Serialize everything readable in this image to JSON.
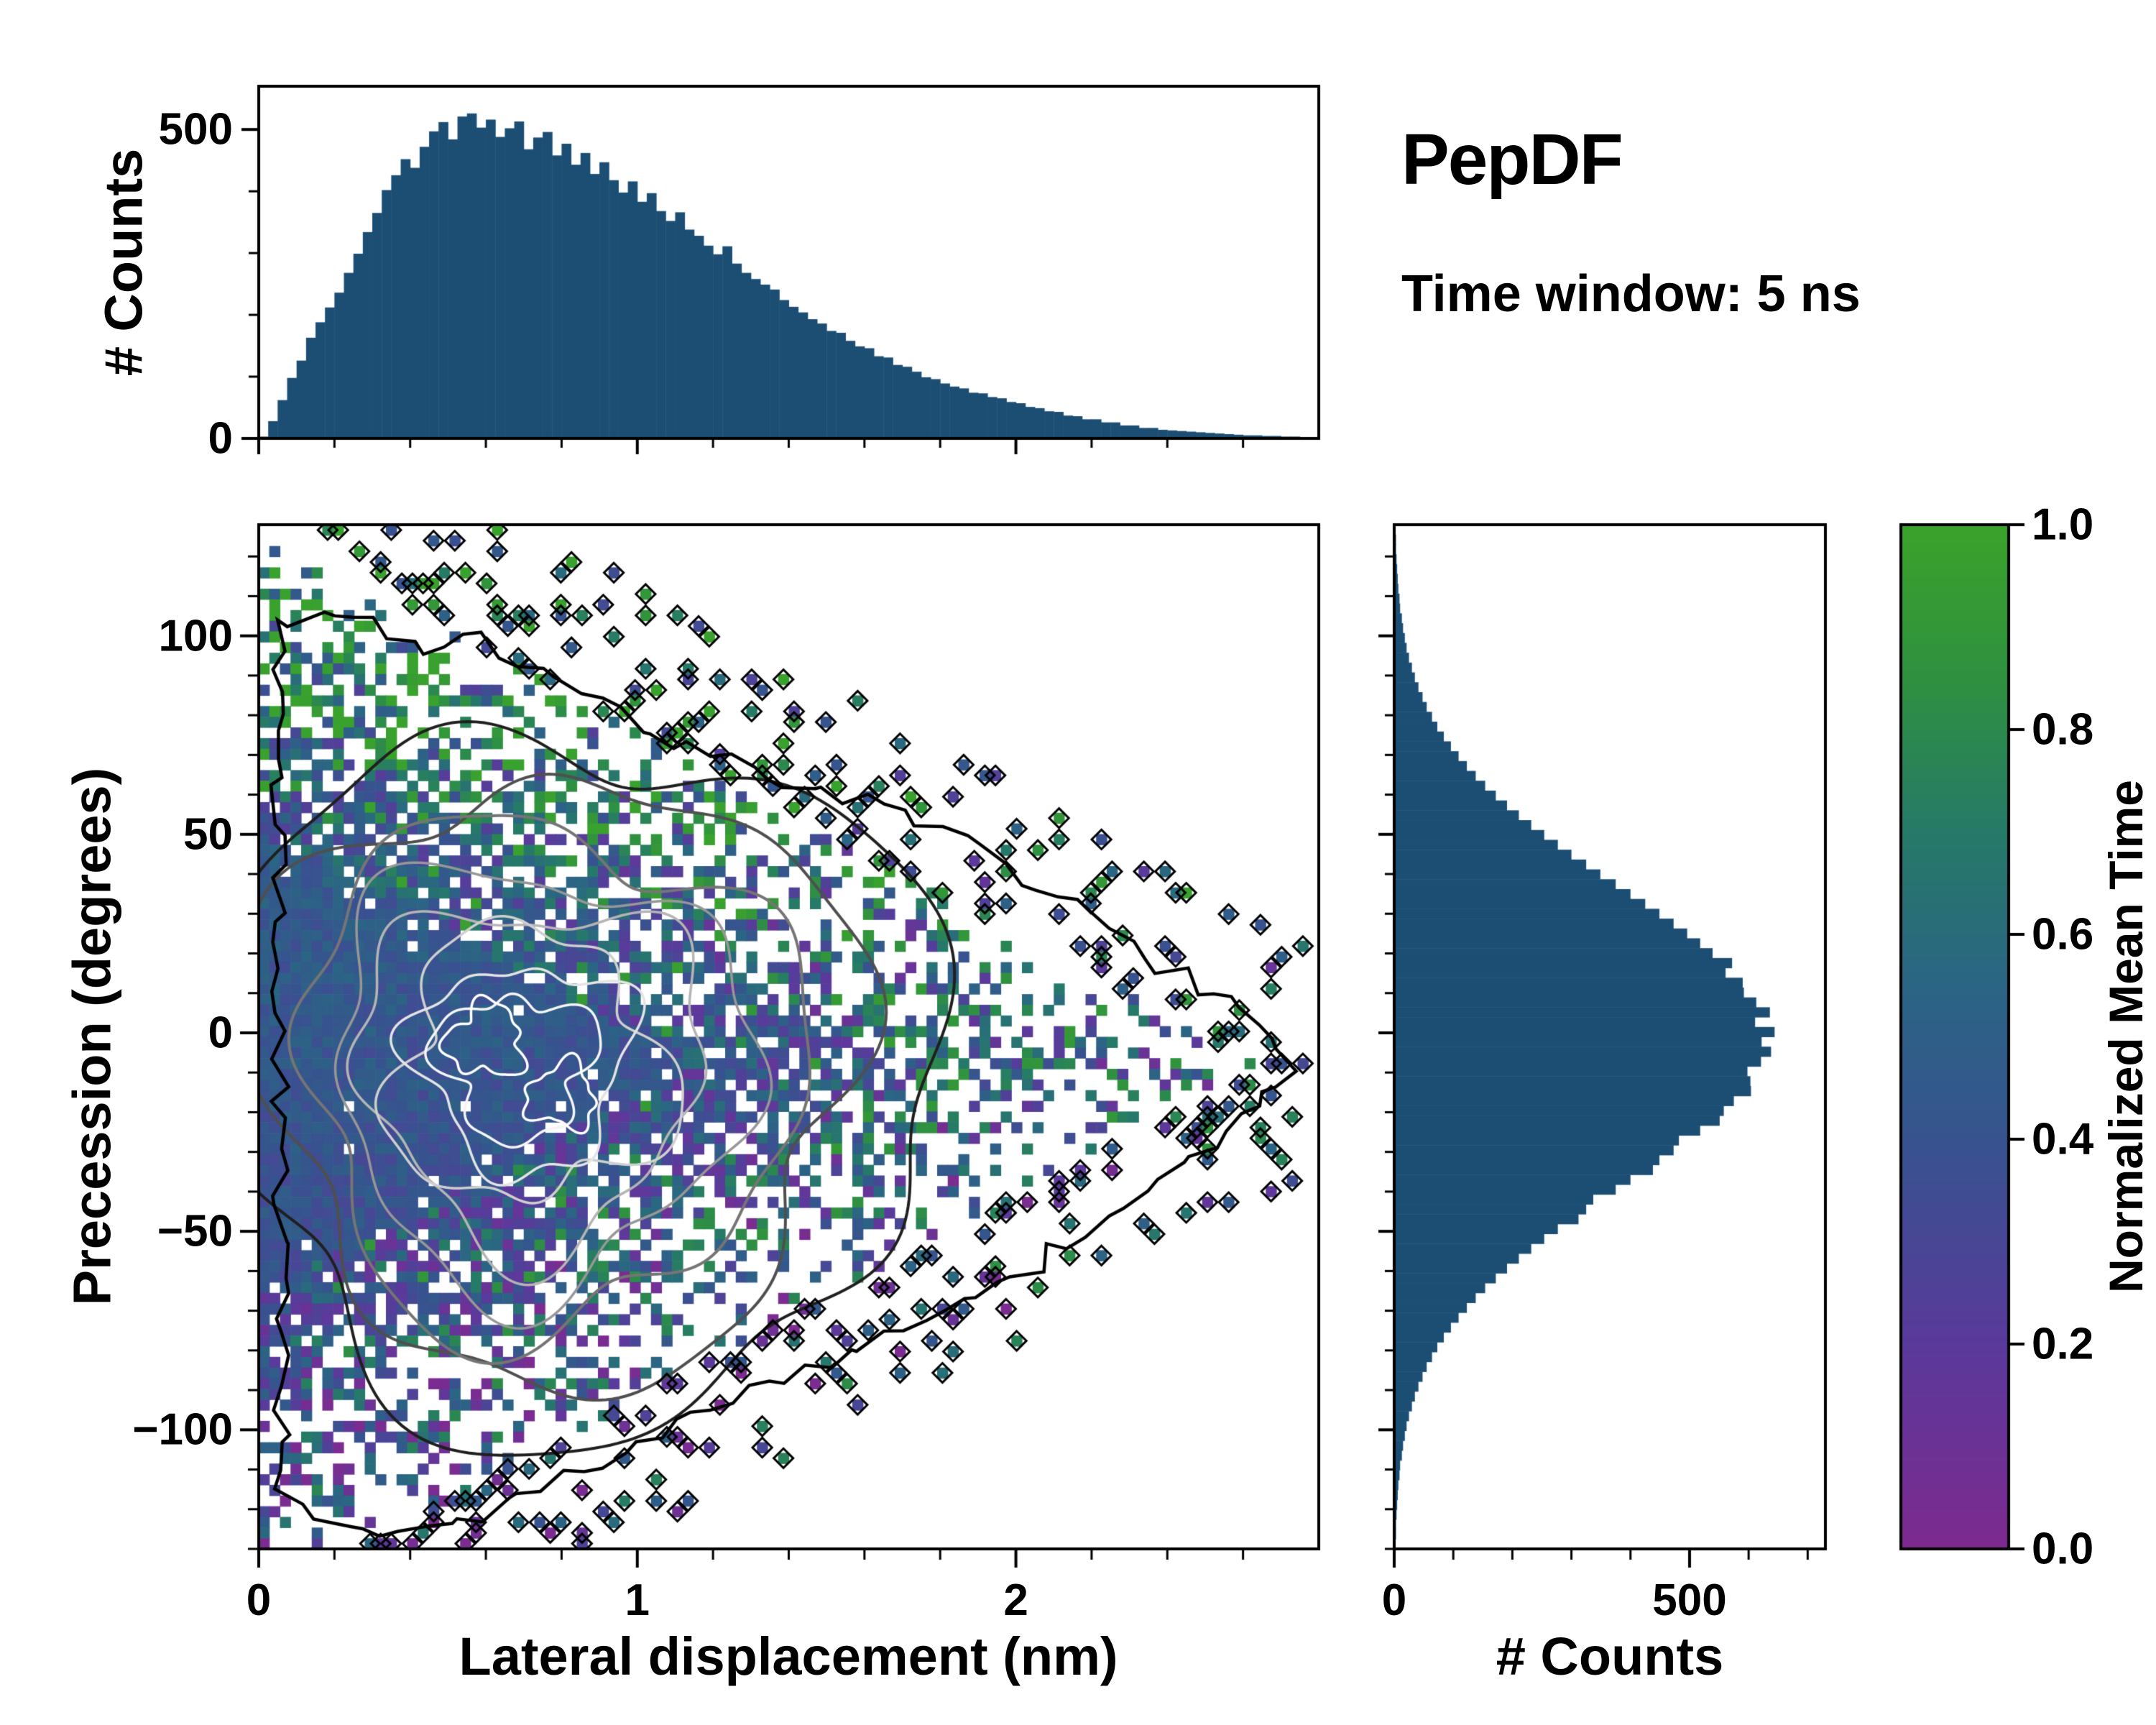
{
  "chart_data": {
    "type": "heatmap",
    "title": "PepDF",
    "subtitle": "Time window: 5 ns",
    "bar_color": "#1c4e74",
    "colormap_stops": [
      [
        0.0,
        "#7e2a8f"
      ],
      [
        0.2,
        "#5a3a9b"
      ],
      [
        0.4,
        "#37538f"
      ],
      [
        0.55,
        "#2b6584"
      ],
      [
        0.7,
        "#267a68"
      ],
      [
        0.85,
        "#2f9140"
      ],
      [
        1.0,
        "#3ba32b"
      ]
    ],
    "top_hist": {
      "ylabel": "# Counts",
      "xlim": [
        0,
        2.8
      ],
      "ylim": [
        0,
        570
      ],
      "bin_width": 0.025,
      "yticks": [
        {
          "v": 0,
          "label": "0"
        },
        {
          "v": 500,
          "label": "500"
        }
      ],
      "values": [
        3,
        28,
        62,
        98,
        126,
        163,
        188,
        212,
        236,
        268,
        299,
        334,
        365,
        402,
        426,
        452,
        438,
        472,
        497,
        512,
        484,
        521,
        526,
        503,
        516,
        488,
        502,
        513,
        468,
        487,
        496,
        458,
        477,
        443,
        462,
        428,
        447,
        418,
        398,
        416,
        383,
        397,
        368,
        352,
        366,
        338,
        328,
        312,
        298,
        311,
        283,
        268,
        258,
        249,
        241,
        224,
        213,
        204,
        193,
        186,
        174,
        171,
        158,
        149,
        146,
        133,
        131,
        119,
        116,
        108,
        99,
        96,
        89,
        84,
        81,
        74,
        73,
        67,
        65,
        59,
        57,
        51,
        49,
        44,
        43,
        37,
        36,
        31,
        31,
        26,
        26,
        21,
        21,
        17,
        17,
        14,
        13,
        12,
        11,
        10,
        9,
        8,
        7,
        6,
        5,
        5,
        4,
        4,
        3,
        3,
        2,
        2
      ]
    },
    "main": {
      "xlabel": "Lateral displacement (nm)",
      "ylabel": "Precession (degrees)",
      "xlim": [
        0,
        2.8
      ],
      "ylim": [
        -130,
        128
      ],
      "xticks": [
        {
          "v": 0,
          "label": "0"
        },
        {
          "v": 1,
          "label": "1"
        },
        {
          "v": 2,
          "label": "2"
        }
      ],
      "yticks": [
        {
          "v": 100,
          "label": "100"
        },
        {
          "v": 50,
          "label": "50"
        },
        {
          "v": 0,
          "label": "0"
        },
        {
          "v": -50,
          "label": "−50"
        },
        {
          "v": -100,
          "label": "−100"
        }
      ],
      "heatmap": {
        "nx": 100,
        "ny": 96,
        "seed": 42,
        "center": [
          0.72,
          -8
        ],
        "value_mean": 0.45
      },
      "contour_loops": [
        {
          "cx": 0.6,
          "cy": -2,
          "sx": 0.1,
          "sy": 9,
          "color": "#ffffff",
          "lw": 3.5,
          "amp": 0.4
        },
        {
          "cx": 0.8,
          "cy": -16,
          "sx": 0.09,
          "sy": 8,
          "color": "#ffffff",
          "lw": 3.5,
          "amp": 0.4
        },
        {
          "cx": 0.68,
          "cy": -8,
          "sx": 0.2,
          "sy": 18,
          "color": "#f5f5f5",
          "lw": 3.5,
          "amp": 0.35
        },
        {
          "cx": 0.7,
          "cy": -8,
          "sx": 0.28,
          "sy": 26,
          "color": "#e4e4e4",
          "lw": 3.5,
          "amp": 0.32
        },
        {
          "cx": 0.71,
          "cy": -9,
          "sx": 0.36,
          "sy": 34,
          "color": "#cfcfcf",
          "lw": 3.5,
          "amp": 0.3
        },
        {
          "cx": 0.72,
          "cy": -9,
          "sx": 0.45,
          "sy": 43,
          "color": "#b5b5b5",
          "lw": 3.5,
          "amp": 0.27
        },
        {
          "cx": 0.74,
          "cy": -10,
          "sx": 0.55,
          "sy": 53,
          "color": "#979797",
          "lw": 3.5,
          "amp": 0.24
        },
        {
          "cx": 0.76,
          "cy": -10,
          "sx": 0.66,
          "sy": 64,
          "color": "#757575",
          "lw": 4,
          "amp": 0.21
        },
        {
          "cx": 0.79,
          "cy": -10,
          "sx": 0.79,
          "sy": 76,
          "color": "#4f4f4f",
          "lw": 4,
          "amp": 0.19
        },
        {
          "cx": 0.84,
          "cy": -11,
          "sx": 0.95,
          "sy": 88,
          "color": "#1f1f1f",
          "lw": 4,
          "amp": 0.17
        }
      ],
      "boundary": [
        [
          0.05,
          104
        ],
        [
          0.25,
          106
        ],
        [
          0.45,
          96
        ],
        [
          0.6,
          99
        ],
        [
          0.9,
          82
        ],
        [
          1.1,
          74
        ],
        [
          1.3,
          66
        ],
        [
          1.55,
          60
        ],
        [
          1.85,
          48
        ],
        [
          2.1,
          34
        ],
        [
          2.35,
          20
        ],
        [
          2.6,
          4
        ],
        [
          2.74,
          -10
        ],
        [
          2.55,
          -26
        ],
        [
          2.35,
          -40
        ],
        [
          2.15,
          -52
        ],
        [
          1.95,
          -64
        ],
        [
          1.7,
          -74
        ],
        [
          1.5,
          -84
        ],
        [
          1.25,
          -93
        ],
        [
          1.05,
          -102
        ],
        [
          0.8,
          -112
        ],
        [
          0.6,
          -122
        ],
        [
          0.38,
          -128
        ],
        [
          0.18,
          -124
        ],
        [
          0.06,
          -116
        ]
      ]
    },
    "right_hist": {
      "xlabel": "# Counts",
      "xlim": [
        0,
        730
      ],
      "ylim": [
        -130,
        128
      ],
      "bin_height": 2.5,
      "xticks": [
        {
          "v": 0,
          "label": "0"
        },
        {
          "v": 500,
          "label": "500"
        }
      ],
      "values": [
        2,
        3,
        3,
        4,
        5,
        6,
        7,
        9,
        10,
        13,
        15,
        18,
        21,
        25,
        30,
        35,
        41,
        48,
        55,
        64,
        73,
        84,
        96,
        109,
        123,
        138,
        154,
        172,
        191,
        211,
        232,
        254,
        277,
        300,
        325,
        349,
        375,
        400,
        425,
        449,
        473,
        496,
        518,
        539,
        572,
        561,
        590,
        592,
        613,
        636,
        611,
        644,
        622,
        638,
        621,
        598,
        603,
        604,
        575,
        558,
        551,
        518,
        482,
        473,
        449,
        438,
        400,
        375,
        337,
        325,
        312,
        277,
        254,
        232,
        211,
        191,
        172,
        154,
        138,
        123,
        109,
        96,
        84,
        73,
        64,
        55,
        48,
        41,
        35,
        30,
        25,
        21,
        18,
        15,
        13,
        10,
        9,
        7,
        6,
        5,
        4,
        3,
        3,
        2
      ]
    },
    "colorbar": {
      "label": "Normalized Mean Time",
      "min": 0,
      "max": 1,
      "ticks": [
        {
          "v": 0.0,
          "label": "0.0"
        },
        {
          "v": 0.2,
          "label": "0.2"
        },
        {
          "v": 0.4,
          "label": "0.4"
        },
        {
          "v": 0.6,
          "label": "0.6"
        },
        {
          "v": 0.8,
          "label": "0.8"
        },
        {
          "v": 1.0,
          "label": "1.0"
        }
      ]
    }
  }
}
